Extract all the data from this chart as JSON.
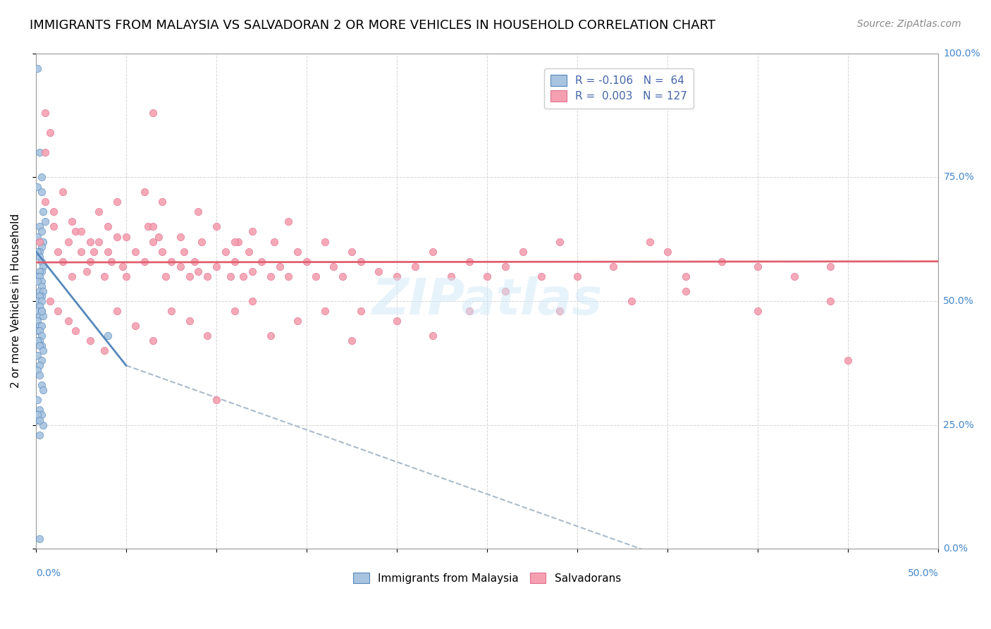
{
  "title": "IMMIGRANTS FROM MALAYSIA VS SALVADORAN 2 OR MORE VEHICLES IN HOUSEHOLD CORRELATION CHART",
  "source": "Source: ZipAtlas.com",
  "ylabel": "2 or more Vehicles in Household",
  "color_blue": "#a8c4e0",
  "color_pink": "#f4a0b0",
  "color_blue_line": "#5588bb",
  "color_pink_line": "#e06070",
  "color_dashed": "#aabbcc",
  "title_fontsize": 13,
  "axis_label_fontsize": 11,
  "source_fontsize": 10,
  "xlim": [
    0.0,
    0.5
  ],
  "ylim": [
    0.0,
    1.0
  ],
  "blue_x": [
    0.001,
    0.002,
    0.003,
    0.001,
    0.003,
    0.004,
    0.005,
    0.002,
    0.003,
    0.001,
    0.004,
    0.003,
    0.002,
    0.001,
    0.002,
    0.003,
    0.004,
    0.003,
    0.002,
    0.001,
    0.002,
    0.003,
    0.001,
    0.003,
    0.002,
    0.004,
    0.003,
    0.002,
    0.001,
    0.003,
    0.002,
    0.001,
    0.003,
    0.002,
    0.004,
    0.001,
    0.002,
    0.003,
    0.001,
    0.002,
    0.003,
    0.002,
    0.001,
    0.003,
    0.002,
    0.004,
    0.001,
    0.003,
    0.002,
    0.001,
    0.002,
    0.003,
    0.004,
    0.001,
    0.002,
    0.003,
    0.001,
    0.004,
    0.002,
    0.003,
    0.001,
    0.002,
    0.04,
    0.002
  ],
  "blue_y": [
    0.97,
    0.8,
    0.75,
    0.73,
    0.72,
    0.68,
    0.66,
    0.65,
    0.64,
    0.63,
    0.62,
    0.61,
    0.6,
    0.6,
    0.59,
    0.58,
    0.57,
    0.56,
    0.56,
    0.55,
    0.55,
    0.54,
    0.54,
    0.53,
    0.52,
    0.52,
    0.51,
    0.51,
    0.5,
    0.5,
    0.49,
    0.48,
    0.48,
    0.47,
    0.47,
    0.46,
    0.45,
    0.45,
    0.44,
    0.44,
    0.43,
    0.42,
    0.42,
    0.41,
    0.41,
    0.4,
    0.39,
    0.38,
    0.37,
    0.36,
    0.35,
    0.33,
    0.32,
    0.3,
    0.28,
    0.27,
    0.26,
    0.25,
    0.23,
    0.48,
    0.27,
    0.26,
    0.43,
    0.02
  ],
  "pink_x": [
    0.002,
    0.005,
    0.008,
    0.01,
    0.012,
    0.015,
    0.018,
    0.02,
    0.022,
    0.025,
    0.028,
    0.03,
    0.032,
    0.035,
    0.038,
    0.04,
    0.042,
    0.045,
    0.048,
    0.05,
    0.055,
    0.06,
    0.062,
    0.065,
    0.068,
    0.07,
    0.072,
    0.075,
    0.08,
    0.082,
    0.085,
    0.088,
    0.09,
    0.092,
    0.095,
    0.1,
    0.105,
    0.108,
    0.11,
    0.112,
    0.115,
    0.118,
    0.12,
    0.125,
    0.13,
    0.132,
    0.135,
    0.14,
    0.145,
    0.15,
    0.155,
    0.16,
    0.165,
    0.17,
    0.175,
    0.18,
    0.19,
    0.2,
    0.21,
    0.22,
    0.23,
    0.24,
    0.25,
    0.26,
    0.27,
    0.28,
    0.29,
    0.3,
    0.32,
    0.34,
    0.35,
    0.36,
    0.38,
    0.4,
    0.42,
    0.44,
    0.005,
    0.01,
    0.015,
    0.02,
    0.025,
    0.03,
    0.035,
    0.04,
    0.045,
    0.05,
    0.06,
    0.065,
    0.07,
    0.08,
    0.09,
    0.1,
    0.11,
    0.12,
    0.14,
    0.008,
    0.012,
    0.018,
    0.022,
    0.03,
    0.038,
    0.045,
    0.055,
    0.065,
    0.075,
    0.085,
    0.095,
    0.11,
    0.12,
    0.13,
    0.145,
    0.16,
    0.175,
    0.2,
    0.22,
    0.24,
    0.26,
    0.29,
    0.33,
    0.36,
    0.4,
    0.44,
    0.005,
    0.065,
    0.1,
    0.45,
    0.18
  ],
  "pink_y": [
    0.62,
    0.8,
    0.84,
    0.65,
    0.6,
    0.58,
    0.62,
    0.55,
    0.64,
    0.6,
    0.56,
    0.58,
    0.6,
    0.62,
    0.55,
    0.6,
    0.58,
    0.63,
    0.57,
    0.55,
    0.6,
    0.58,
    0.65,
    0.62,
    0.63,
    0.6,
    0.55,
    0.58,
    0.57,
    0.6,
    0.55,
    0.58,
    0.56,
    0.62,
    0.55,
    0.57,
    0.6,
    0.55,
    0.58,
    0.62,
    0.55,
    0.6,
    0.56,
    0.58,
    0.55,
    0.62,
    0.57,
    0.55,
    0.6,
    0.58,
    0.55,
    0.62,
    0.57,
    0.55,
    0.6,
    0.58,
    0.56,
    0.55,
    0.57,
    0.6,
    0.55,
    0.58,
    0.55,
    0.57,
    0.6,
    0.55,
    0.62,
    0.55,
    0.57,
    0.62,
    0.6,
    0.55,
    0.58,
    0.57,
    0.55,
    0.57,
    0.7,
    0.68,
    0.72,
    0.66,
    0.64,
    0.62,
    0.68,
    0.65,
    0.7,
    0.63,
    0.72,
    0.65,
    0.7,
    0.63,
    0.68,
    0.65,
    0.62,
    0.64,
    0.66,
    0.5,
    0.48,
    0.46,
    0.44,
    0.42,
    0.4,
    0.48,
    0.45,
    0.42,
    0.48,
    0.46,
    0.43,
    0.48,
    0.5,
    0.43,
    0.46,
    0.48,
    0.42,
    0.46,
    0.43,
    0.48,
    0.52,
    0.48,
    0.5,
    0.52,
    0.48,
    0.5,
    0.88,
    0.88,
    0.3,
    0.38,
    0.48
  ]
}
